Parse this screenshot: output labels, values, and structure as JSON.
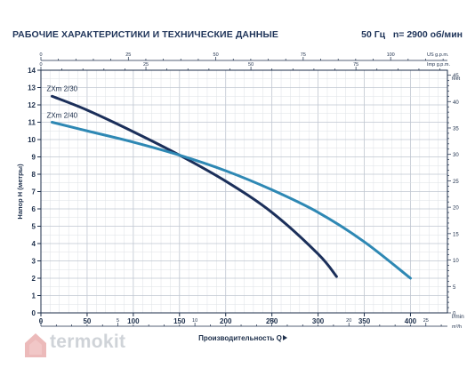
{
  "header": {
    "title": "РАБОЧИЕ ХАРАКТЕРИСТИКИ И ТЕХНИЧЕСКИЕ ДАННЫЕ",
    "freq": "50 Гц   n= 2900 об/мин"
  },
  "watermark": {
    "text": "termokit",
    "icon": "house-logo-icon",
    "color": "#cfd3d8"
  },
  "chart_data": {
    "type": "line",
    "title": "",
    "xlabel": "Производительность Q",
    "ylabel": "Напор H (метры)",
    "ylabel_right": "feet",
    "x_unit": "l/min",
    "x_unit_m3h": "m³/h",
    "top_unit_us": "US g.p.m.",
    "top_unit_imp": "Imp g.p.m.",
    "xlim": [
      0,
      440
    ],
    "ylim": [
      0,
      14
    ],
    "grid": true,
    "x_ticks": [
      0,
      50,
      100,
      150,
      200,
      250,
      300,
      350,
      400
    ],
    "y_ticks": [
      0,
      1,
      2,
      3,
      4,
      5,
      6,
      7,
      8,
      9,
      10,
      11,
      12,
      13,
      14
    ],
    "m3h_ticks": [
      0,
      5,
      10,
      15,
      20,
      25
    ],
    "us_gpm_ticks": [
      0,
      25,
      50,
      75,
      100
    ],
    "imp_gpm_ticks": [
      0,
      25,
      50,
      75
    ],
    "feet_ticks": [
      0,
      5,
      10,
      15,
      20,
      25,
      30,
      35,
      40,
      45
    ],
    "series": [
      {
        "name": "ZXm 2/30",
        "color": "#1b2f5a",
        "x": [
          12,
          50,
          100,
          150,
          200,
          250,
          300,
          320
        ],
        "y": [
          12.5,
          11.7,
          10.45,
          9.1,
          7.6,
          5.8,
          3.4,
          2.1
        ]
      },
      {
        "name": "ZXm 2/40",
        "color": "#2e88b4",
        "x": [
          12,
          50,
          100,
          150,
          200,
          250,
          300,
          350,
          400
        ],
        "y": [
          11.0,
          10.5,
          9.85,
          9.1,
          8.2,
          7.1,
          5.8,
          4.1,
          2.0
        ]
      }
    ]
  }
}
